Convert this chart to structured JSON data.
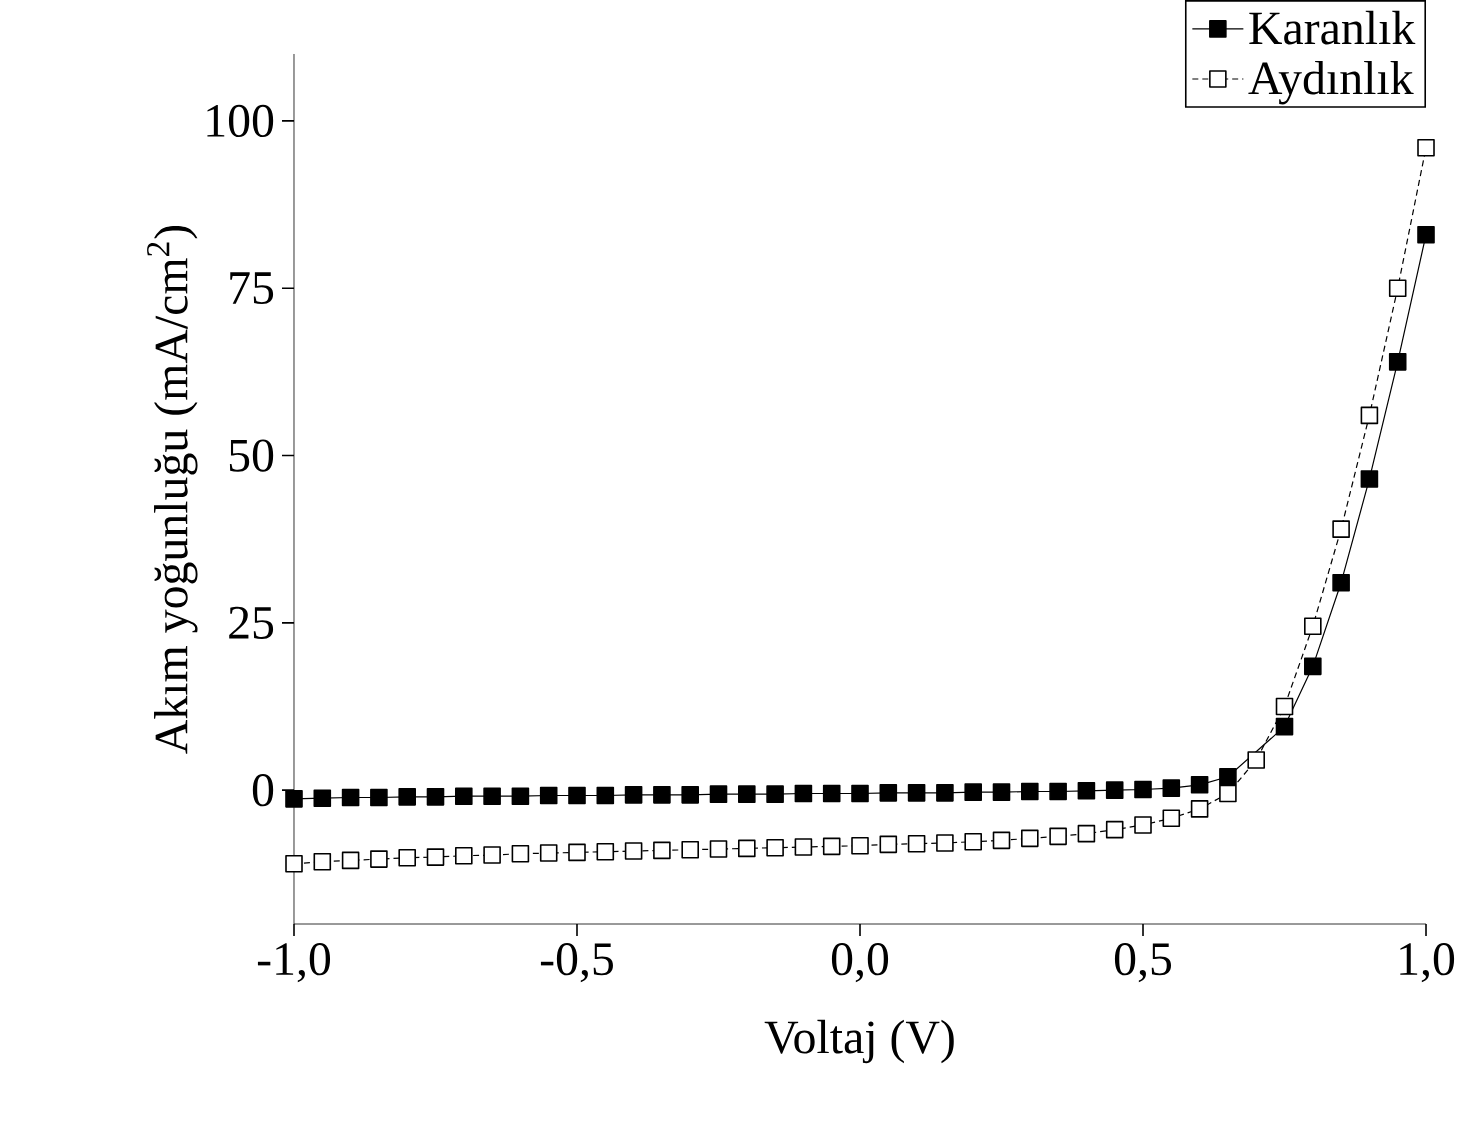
{
  "chart_data": {
    "type": "line",
    "xlabel": "Voltaj (V)",
    "ylabel": "Akım yoğunluğu (mA/cm$^{2}$)",
    "xlim": [
      -1.0,
      1.0
    ],
    "ylim": [
      -20,
      110
    ],
    "xticks": [
      {
        "value": -1.0,
        "label": "-1,0"
      },
      {
        "value": -0.5,
        "label": "-0,5"
      },
      {
        "value": 0.0,
        "label": "0,0"
      },
      {
        "value": 0.5,
        "label": "0,5"
      },
      {
        "value": 1.0,
        "label": "1,0"
      }
    ],
    "yticks": [
      0,
      25,
      50,
      75,
      100
    ],
    "x": [
      -1.0,
      -0.95,
      -0.9,
      -0.85,
      -0.8,
      -0.75,
      -0.7,
      -0.65,
      -0.6,
      -0.55,
      -0.5,
      -0.45,
      -0.4,
      -0.35,
      -0.3,
      -0.25,
      -0.2,
      -0.15,
      -0.1,
      -0.05,
      0.0,
      0.05,
      0.1,
      0.15,
      0.2,
      0.25,
      0.3,
      0.35,
      0.4,
      0.45,
      0.5,
      0.55,
      0.6,
      0.65,
      0.7,
      0.75,
      0.8,
      0.85,
      0.9,
      0.95,
      1.0
    ],
    "legend": "top right",
    "grid": false,
    "marker": "square",
    "series": [
      {
        "name": "Karanlık",
        "color": "#000000",
        "line_style": "solid",
        "values": [
          -1.3,
          -1.2,
          -1.1,
          -1.1,
          -1.0,
          -1.0,
          -0.9,
          -0.9,
          -0.9,
          -0.8,
          -0.8,
          -0.8,
          -0.7,
          -0.7,
          -0.7,
          -0.6,
          -0.6,
          -0.6,
          -0.5,
          -0.5,
          -0.5,
          -0.4,
          -0.4,
          -0.4,
          -0.3,
          -0.3,
          -0.2,
          -0.2,
          -0.1,
          0.0,
          0.1,
          0.3,
          0.8,
          2.0,
          null,
          9.5,
          18.5,
          31,
          46.5,
          64,
          83
        ]
      },
      {
        "name": "Aydınlık",
        "color": "#000000",
        "line_style": "dotted",
        "values": [
          -11.0,
          -10.7,
          -10.5,
          -10.3,
          -10.1,
          -10.0,
          -9.8,
          -9.7,
          -9.5,
          -9.4,
          -9.3,
          -9.2,
          -9.1,
          -9.0,
          -8.9,
          -8.8,
          -8.7,
          -8.6,
          -8.5,
          -8.4,
          -8.3,
          -8.1,
          -8.0,
          -7.9,
          -7.7,
          -7.5,
          -7.2,
          -6.9,
          -6.5,
          -5.9,
          -5.2,
          -4.2,
          -2.8,
          -0.5,
          4.5,
          12.5,
          24.5,
          39,
          56,
          75,
          96
        ]
      }
    ]
  }
}
